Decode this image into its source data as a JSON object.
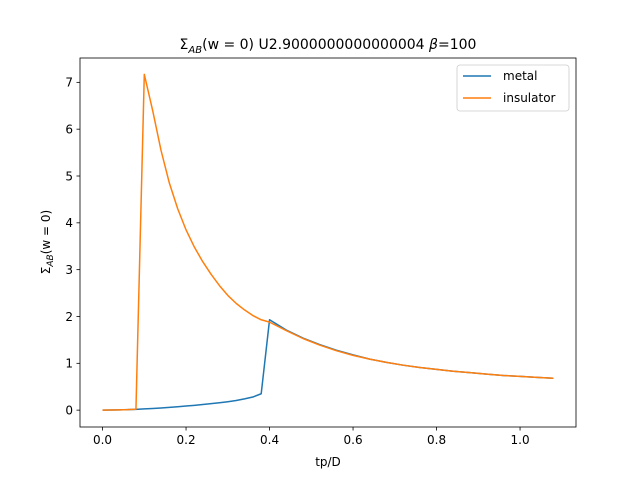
{
  "chart_data": {
    "type": "line",
    "title": "Σ_AB(w = 0) U2.9000000000000004 β=100",
    "title_parts": {
      "sigma": "Σ",
      "sub": "AB",
      "arg": "(w = 0) U2.9000000000000004 ",
      "beta": "β",
      "beta_val": "=100"
    },
    "xlabel": "tp/D",
    "ylabel_parts": {
      "sigma": "Σ",
      "sub": "AB",
      "arg": "(w = 0)"
    },
    "xlim": [
      -0.054,
      1.134
    ],
    "ylim": [
      -0.36,
      7.52
    ],
    "xticks": [
      0.0,
      0.2,
      0.4,
      0.6,
      0.8,
      1.0
    ],
    "xtick_labels": [
      "0.0",
      "0.2",
      "0.4",
      "0.6",
      "0.8",
      "1.0"
    ],
    "yticks": [
      0,
      1,
      2,
      3,
      4,
      5,
      6,
      7
    ],
    "ytick_labels": [
      "0",
      "1",
      "2",
      "3",
      "4",
      "5",
      "6",
      "7"
    ],
    "grid": false,
    "legend_position": "top-right",
    "series": [
      {
        "name": "metal",
        "color": "#1f77b4",
        "x": [
          0.0,
          0.02,
          0.04,
          0.06,
          0.08,
          0.1,
          0.12,
          0.14,
          0.16,
          0.18,
          0.2,
          0.22,
          0.24,
          0.26,
          0.28,
          0.3,
          0.32,
          0.34,
          0.36,
          0.38,
          0.4,
          0.44,
          0.48,
          0.52,
          0.56,
          0.6,
          0.64,
          0.68,
          0.72,
          0.76,
          0.8,
          0.84,
          0.88,
          0.92,
          0.96,
          1.0,
          1.04,
          1.08
        ],
        "y": [
          0.0,
          0.002,
          0.005,
          0.01,
          0.017,
          0.026,
          0.036,
          0.047,
          0.06,
          0.073,
          0.088,
          0.103,
          0.12,
          0.138,
          0.158,
          0.18,
          0.205,
          0.24,
          0.28,
          0.35,
          1.93,
          1.71,
          1.54,
          1.4,
          1.28,
          1.18,
          1.09,
          1.02,
          0.96,
          0.91,
          0.87,
          0.83,
          0.8,
          0.77,
          0.74,
          0.72,
          0.7,
          0.68
        ]
      },
      {
        "name": "insulator",
        "color": "#ff7f0e",
        "x": [
          0.0,
          0.02,
          0.04,
          0.06,
          0.08,
          0.1,
          0.12,
          0.14,
          0.16,
          0.18,
          0.2,
          0.22,
          0.24,
          0.26,
          0.28,
          0.3,
          0.32,
          0.34,
          0.36,
          0.38,
          0.4,
          0.44,
          0.48,
          0.52,
          0.56,
          0.6,
          0.64,
          0.68,
          0.72,
          0.76,
          0.8,
          0.84,
          0.88,
          0.92,
          0.96,
          1.0,
          1.04,
          1.08
        ],
        "y": [
          0.0,
          0.002,
          0.005,
          0.01,
          0.02,
          7.17,
          6.4,
          5.55,
          4.85,
          4.3,
          3.85,
          3.48,
          3.17,
          2.9,
          2.66,
          2.45,
          2.28,
          2.14,
          2.02,
          1.93,
          1.88,
          1.7,
          1.53,
          1.39,
          1.27,
          1.17,
          1.09,
          1.02,
          0.96,
          0.91,
          0.87,
          0.83,
          0.8,
          0.77,
          0.74,
          0.72,
          0.7,
          0.68
        ]
      }
    ]
  }
}
